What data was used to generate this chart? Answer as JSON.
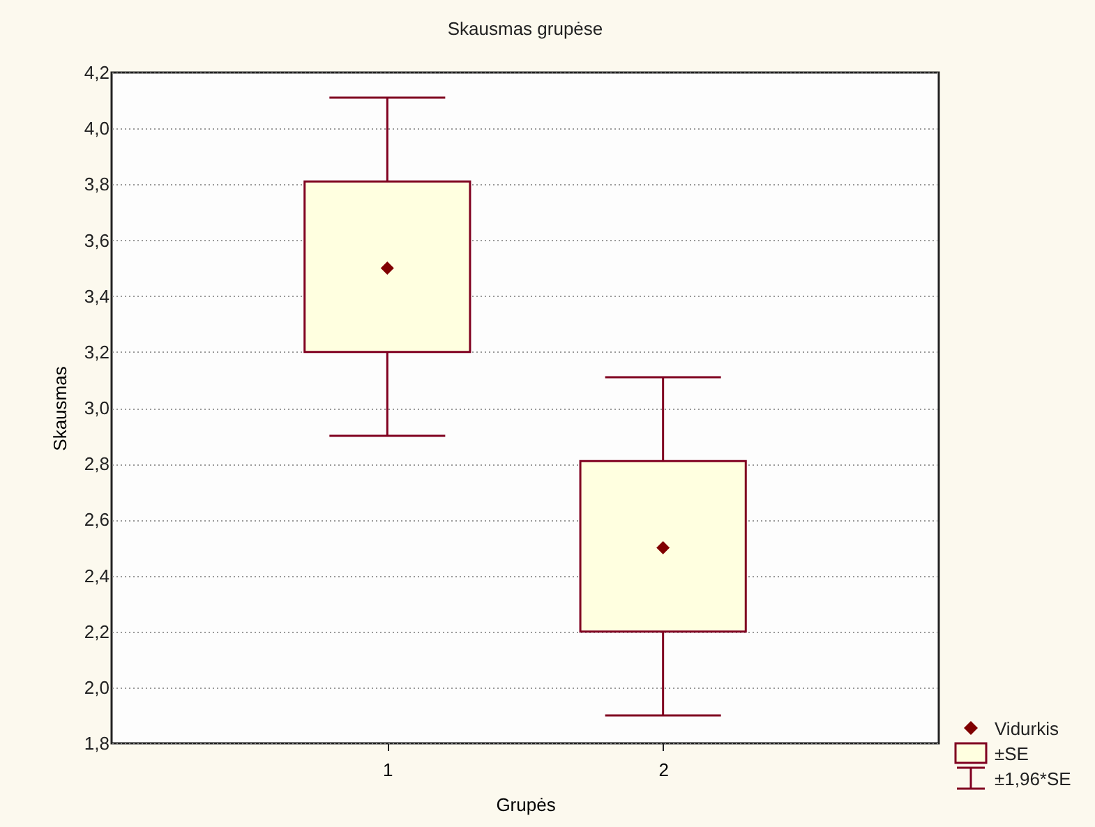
{
  "chart_data": {
    "type": "box",
    "title": "Skausmas grupėse",
    "xlabel": "Grupės",
    "ylabel": "Skausmas",
    "categories": [
      "1",
      "2"
    ],
    "series": [
      {
        "color": "#ffffe0",
        "boxes": [
          {
            "low": 2.9,
            "q1": 3.2,
            "median": 3.5,
            "q3": 3.81,
            "high": 4.11
          },
          {
            "low": 1.9,
            "q1": 2.2,
            "median": 2.5,
            "q3": 2.81,
            "high": 3.11
          }
        ]
      }
    ],
    "annotations": [
      "Vidurkis",
      "±SE",
      "±1,96*SE"
    ],
    "marker": "diamond",
    "ylim": [
      1.8,
      4.2
    ],
    "yticks": [
      {
        "value": 1.8,
        "label": "1,8"
      },
      {
        "value": 2.0,
        "label": "2,0"
      },
      {
        "value": 2.2,
        "label": "2,2"
      },
      {
        "value": 2.4,
        "label": "2,4"
      },
      {
        "value": 2.6,
        "label": "2,6"
      },
      {
        "value": 2.8,
        "label": "2,8"
      },
      {
        "value": 3.0,
        "label": "3,0"
      },
      {
        "value": 3.2,
        "label": "3,2"
      },
      {
        "value": 3.4,
        "label": "3,4"
      },
      {
        "value": 3.6,
        "label": "3,6"
      },
      {
        "value": 3.8,
        "label": "3,8"
      },
      {
        "value": 4.0,
        "label": "4,0"
      },
      {
        "value": 4.2,
        "label": "4,2"
      }
    ],
    "grid": "y"
  }
}
